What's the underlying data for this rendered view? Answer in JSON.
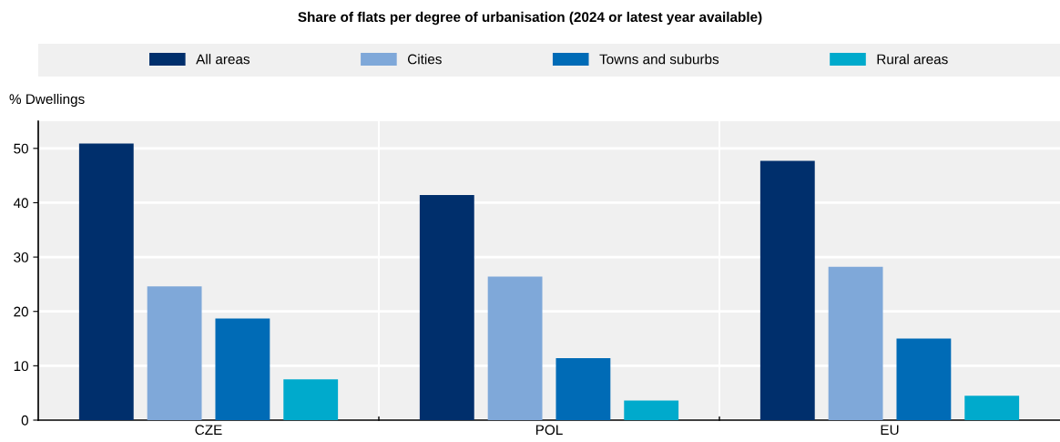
{
  "chart_data": {
    "type": "bar",
    "title": "Share of flats per degree of urbanisation (2024 or latest year available)",
    "ylabel": "% Dwellings",
    "categories": [
      "CZE",
      "POL",
      "EU"
    ],
    "series": [
      {
        "name": "All areas",
        "color": "#002f6c",
        "values": [
          50.9,
          41.4,
          47.7
        ]
      },
      {
        "name": "Cities",
        "color": "#7fa8d9",
        "values": [
          24.6,
          26.4,
          28.2
        ]
      },
      {
        "name": "Towns and suburbs",
        "color": "#006bb6",
        "values": [
          18.7,
          11.4,
          15.0
        ]
      },
      {
        "name": "Rural areas",
        "color": "#00aacc",
        "values": [
          7.5,
          3.6,
          4.5
        ]
      }
    ],
    "ylim": [
      0,
      55
    ],
    "yticks": [
      0,
      10,
      20,
      30,
      40,
      50
    ],
    "grid": "y",
    "legend": "top"
  }
}
